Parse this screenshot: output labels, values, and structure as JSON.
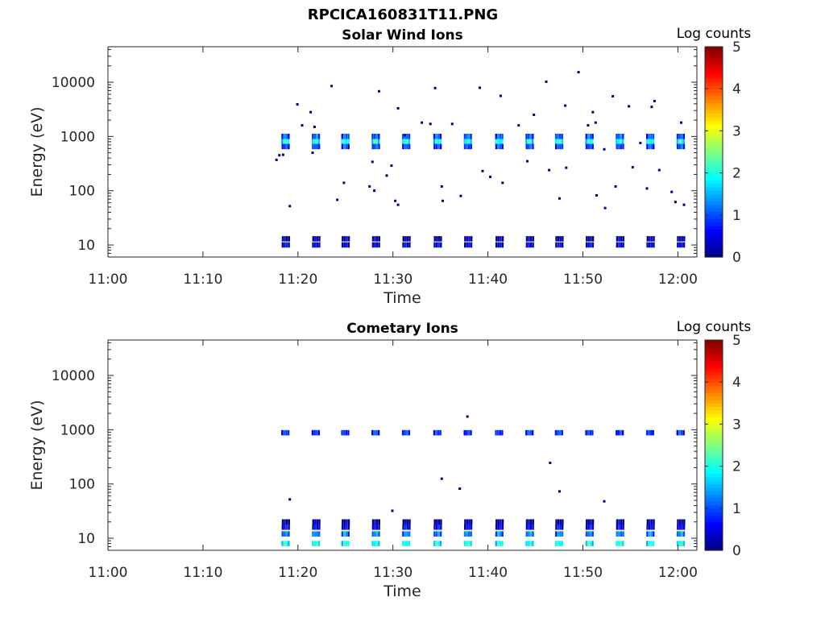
{
  "figure": {
    "title": "RPCICA160831T11.PNG"
  },
  "colors": {
    "colormap": [
      "#00007f",
      "#0000ff",
      "#007fff",
      "#00ffff",
      "#7fff7f",
      "#ffff00",
      "#ff7f00",
      "#ff0000",
      "#7f0000"
    ],
    "axis": "#262626"
  },
  "chart_data": [
    {
      "type": "heatmap",
      "title": "Solar Wind Ions",
      "xlabel": "Time",
      "ylabel": "Energy (eV)",
      "x_ticks": [
        "11:00",
        "11:10",
        "11:20",
        "11:30",
        "11:40",
        "11:50",
        "12:00"
      ],
      "x_range": [
        "11:00",
        "12:02"
      ],
      "y_scale": "log",
      "y_ticks": [
        "10",
        "100",
        "1000",
        "10000"
      ],
      "y_range": [
        6,
        45000
      ],
      "colorbar": {
        "label": "Log counts",
        "range": [
          0,
          5
        ],
        "ticks": [
          "0",
          "1",
          "2",
          "3",
          "4",
          "5"
        ]
      },
      "grid": false,
      "sweep_times_min": [
        18.8,
        22.0,
        25.1,
        28.3,
        31.5,
        34.8,
        38.0,
        41.3,
        44.5,
        47.6,
        50.8,
        54.0,
        57.2,
        60.4
      ],
      "peaks": [
        {
          "energy": 800,
          "log_counts": 2.3
        },
        {
          "energy": 1000,
          "log_counts": 1.4
        },
        {
          "energy": 650,
          "log_counts": 1.3
        },
        {
          "energy": 10,
          "log_counts": 0.8
        },
        {
          "energy": 13,
          "log_counts": 0.6
        }
      ],
      "scatter": [
        [
          17.7,
          370
        ],
        [
          18.0,
          450
        ],
        [
          18.4,
          460
        ],
        [
          19.1,
          52
        ],
        [
          19.9,
          3900
        ],
        [
          20.4,
          1600
        ],
        [
          21.3,
          2800
        ],
        [
          21.7,
          1500
        ],
        [
          21.5,
          500
        ],
        [
          23.5,
          8500
        ],
        [
          24.8,
          140
        ],
        [
          24.1,
          68
        ],
        [
          27.5,
          120
        ],
        [
          27.8,
          340
        ],
        [
          28.0,
          100
        ],
        [
          28.5,
          6800
        ],
        [
          29.3,
          190
        ],
        [
          29.8,
          290
        ],
        [
          30.2,
          65
        ],
        [
          30.5,
          55
        ],
        [
          30.5,
          3300
        ],
        [
          31.2,
          1050
        ],
        [
          33.0,
          1800
        ],
        [
          34.4,
          7800
        ],
        [
          33.9,
          1700
        ],
        [
          35.1,
          120
        ],
        [
          35.2,
          65
        ],
        [
          36.2,
          1700
        ],
        [
          37.1,
          80
        ],
        [
          39.1,
          7900
        ],
        [
          39.4,
          230
        ],
        [
          40.2,
          180
        ],
        [
          41.3,
          5600
        ],
        [
          41.5,
          140
        ],
        [
          43.2,
          1600
        ],
        [
          44.1,
          350
        ],
        [
          44.8,
          2500
        ],
        [
          46.1,
          10200
        ],
        [
          46.4,
          240
        ],
        [
          47.5,
          72
        ],
        [
          48.2,
          265
        ],
        [
          48.1,
          3700
        ],
        [
          49.5,
          15300
        ],
        [
          50.5,
          1600
        ],
        [
          51.0,
          2800
        ],
        [
          51.3,
          1800
        ],
        [
          51.4,
          82
        ],
        [
          52.2,
          580
        ],
        [
          52.3,
          48
        ],
        [
          53.4,
          120
        ],
        [
          53.1,
          5500
        ],
        [
          54.8,
          3600
        ],
        [
          55.2,
          270
        ],
        [
          56.0,
          760
        ],
        [
          56.7,
          110
        ],
        [
          57.2,
          3500
        ],
        [
          57.5,
          4500
        ],
        [
          58.0,
          240
        ],
        [
          59.3,
          95
        ],
        [
          59.7,
          62
        ],
        [
          60.3,
          1800
        ],
        [
          60.6,
          55
        ]
      ]
    },
    {
      "type": "heatmap",
      "title": "Cometary Ions",
      "xlabel": "Time",
      "ylabel": "Energy (eV)",
      "x_ticks": [
        "11:00",
        "11:10",
        "11:20",
        "11:30",
        "11:40",
        "11:50",
        "12:00"
      ],
      "x_range": [
        "11:00",
        "12:02"
      ],
      "y_scale": "log",
      "y_ticks": [
        "10",
        "100",
        "1000",
        "10000"
      ],
      "y_range": [
        6,
        45000
      ],
      "colorbar": {
        "label": "Log counts",
        "range": [
          0,
          5
        ],
        "ticks": [
          "0",
          "1",
          "2",
          "3",
          "4",
          "5"
        ]
      },
      "grid": false,
      "sweep_times_min": [
        18.8,
        22.0,
        25.1,
        28.3,
        31.5,
        34.8,
        38.0,
        41.3,
        44.5,
        47.6,
        50.8,
        54.0,
        57.2,
        60.4
      ],
      "peaks": [
        {
          "energy": 880,
          "log_counts": 1.2
        },
        {
          "energy": 8,
          "log_counts": 2.3
        },
        {
          "energy": 12,
          "log_counts": 1.6
        },
        {
          "energy": 16,
          "log_counts": 0.9
        },
        {
          "energy": 20,
          "log_counts": 0.4
        }
      ],
      "scatter": [
        [
          19.1,
          52
        ],
        [
          29.9,
          32
        ],
        [
          35.1,
          125
        ],
        [
          37.0,
          82
        ],
        [
          37.8,
          1750
        ],
        [
          46.5,
          245
        ],
        [
          47.5,
          73
        ],
        [
          52.2,
          48
        ]
      ]
    }
  ]
}
